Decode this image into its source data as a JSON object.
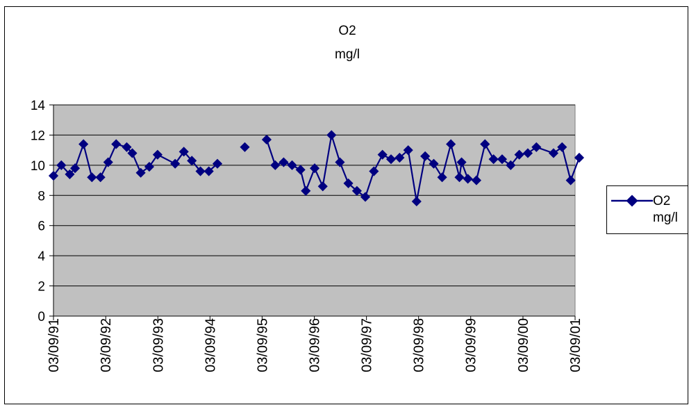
{
  "chart_data": {
    "type": "line",
    "title": "O2",
    "subtitle": "mg/l",
    "ylim": [
      0,
      14
    ],
    "y_ticks": [
      0,
      2,
      4,
      6,
      8,
      10,
      12,
      14
    ],
    "x_tick_labels": [
      "03/09/91",
      "03/09/92",
      "03/09/93",
      "03/09/94",
      "03/09/95",
      "03/09/96",
      "03/09/97",
      "03/09/98",
      "03/09/99",
      "03/09/00",
      "03/09/01"
    ],
    "xlim": [
      "1991-09-03",
      "2001-09-03"
    ],
    "grid": true,
    "legend": "right",
    "series": [
      {
        "name": "O2 mg/l",
        "color": "#000080",
        "points": [
          [
            "1991-09-03",
            9.3
          ],
          [
            "1991-10-28",
            10.0
          ],
          [
            "1991-12-26",
            9.4
          ],
          [
            "1992-02-01",
            9.8
          ],
          [
            "1992-03-31",
            11.4
          ],
          [
            "1992-05-29",
            9.2
          ],
          [
            "1992-07-28",
            9.2
          ],
          [
            "1992-09-20",
            10.2
          ],
          [
            "1992-11-15",
            11.4
          ],
          [
            "1993-01-28",
            11.2
          ],
          [
            "1993-03-08",
            10.8
          ],
          [
            "1993-05-06",
            9.5
          ],
          [
            "1993-07-05",
            9.9
          ],
          [
            "1993-09-01",
            10.7
          ],
          [
            "1994-01-02",
            10.1
          ],
          [
            "1994-03-04",
            10.9
          ],
          [
            "1994-04-29",
            10.3
          ],
          [
            "1994-06-28",
            9.6
          ],
          [
            "1994-08-26",
            9.6
          ],
          [
            "1994-10-25",
            10.1
          ],
          [
            "1995-05-05",
            11.2
          ],
          [
            "1995-10-05",
            11.7
          ],
          [
            "1995-12-04",
            10.0
          ],
          [
            "1996-02-01",
            10.2
          ],
          [
            "1996-03-31",
            10.0
          ],
          [
            "1996-05-29",
            9.7
          ],
          [
            "1996-07-05",
            8.3
          ],
          [
            "1996-09-05",
            9.8
          ],
          [
            "1996-11-01",
            8.6
          ],
          [
            "1997-01-01",
            12.0
          ],
          [
            "1997-03-01",
            10.2
          ],
          [
            "1997-04-29",
            8.8
          ],
          [
            "1997-06-28",
            8.3
          ],
          [
            "1997-08-26",
            7.9
          ],
          [
            "1997-10-25",
            9.6
          ],
          [
            "1997-12-24",
            10.7
          ],
          [
            "1998-02-22",
            10.4
          ],
          [
            "1998-04-23",
            10.5
          ],
          [
            "1998-06-22",
            11.0
          ],
          [
            "1998-08-20",
            7.6
          ],
          [
            "1998-10-19",
            10.6
          ],
          [
            "1998-12-18",
            10.1
          ],
          [
            "1999-02-15",
            9.2
          ],
          [
            "1999-04-17",
            11.4
          ],
          [
            "1999-06-16",
            9.2
          ],
          [
            "1999-07-01",
            10.2
          ],
          [
            "1999-08-14",
            9.1
          ],
          [
            "1999-10-13",
            9.0
          ],
          [
            "1999-12-12",
            11.4
          ],
          [
            "2000-02-10",
            10.4
          ],
          [
            "2000-04-10",
            10.4
          ],
          [
            "2000-06-09",
            10.0
          ],
          [
            "2000-08-08",
            10.7
          ],
          [
            "2000-10-07",
            10.8
          ],
          [
            "2000-12-06",
            11.2
          ],
          [
            "2001-04-05",
            10.8
          ],
          [
            "2001-06-04",
            11.2
          ],
          [
            "2001-08-03",
            9.0
          ],
          [
            "2001-10-02",
            10.5
          ]
        ]
      }
    ]
  },
  "legend": {
    "line1": "O2",
    "line2": "mg/l"
  }
}
